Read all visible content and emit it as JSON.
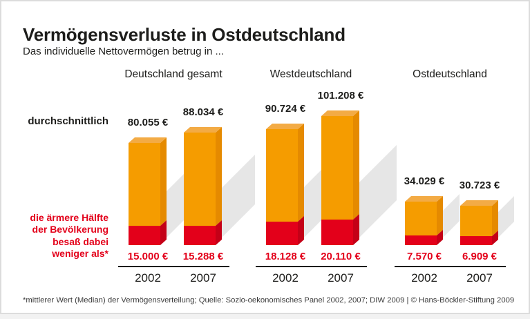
{
  "title": "Vermögensverluste in Ostdeutschland",
  "subtitle": "Das individuelle Nettovermögen betrug in ...",
  "row_labels": {
    "average": "durchschnittlich",
    "median_lines": [
      "die ärmere Hälfte",
      "der Bevölkerung",
      "besaß dabei",
      "weniger als*"
    ]
  },
  "footnote": "*mittlerer Wert (Median) der Vermögensverteilung; Quelle: Sozio-oekonomisches Panel 2002, 2007; DIW 2009 | © Hans-Böckler-Stiftung 2009",
  "colors": {
    "text": "#1d1d1b",
    "accent_red": "#e3001a",
    "orange_front": "#f59c00",
    "orange_top": "#f3ab45",
    "orange_side": "#e58a00",
    "red_front": "#e3001a",
    "red_side": "#c40017",
    "shadow": "#e6e6e6",
    "border": "#dcdcdc",
    "baseline": "#1d1d1b"
  },
  "chart_data": {
    "type": "bar",
    "unit": "EUR",
    "style": "3d-stacked-columns",
    "legend_note": "orange = durchschnittliches Nettovermögen, rot = Median-Anteil (ärmere Hälfte besaß weniger als)",
    "groups": [
      {
        "label": "Deutschland gesamt",
        "bars": [
          {
            "year": "2002",
            "average": 80055,
            "average_label": "80.055 €",
            "median": 15000,
            "median_label": "15.000 €"
          },
          {
            "year": "2007",
            "average": 88034,
            "average_label": "88.034 €",
            "median": 15288,
            "median_label": "15.288 €"
          }
        ]
      },
      {
        "label": "Westdeutschland",
        "bars": [
          {
            "year": "2002",
            "average": 90724,
            "average_label": "90.724 €",
            "median": 18128,
            "median_label": "18.128 €"
          },
          {
            "year": "2007",
            "average": 101208,
            "average_label": "101.208 €",
            "median": 20110,
            "median_label": "20.110 €"
          }
        ]
      },
      {
        "label": "Ostdeutschland",
        "bars": [
          {
            "year": "2002",
            "average": 34029,
            "average_label": "34.029 €",
            "median": 7570,
            "median_label": "7.570 €"
          },
          {
            "year": "2007",
            "average": 30723,
            "average_label": "30.723 €",
            "median": 6909,
            "median_label": "6.909 €"
          }
        ]
      }
    ]
  }
}
